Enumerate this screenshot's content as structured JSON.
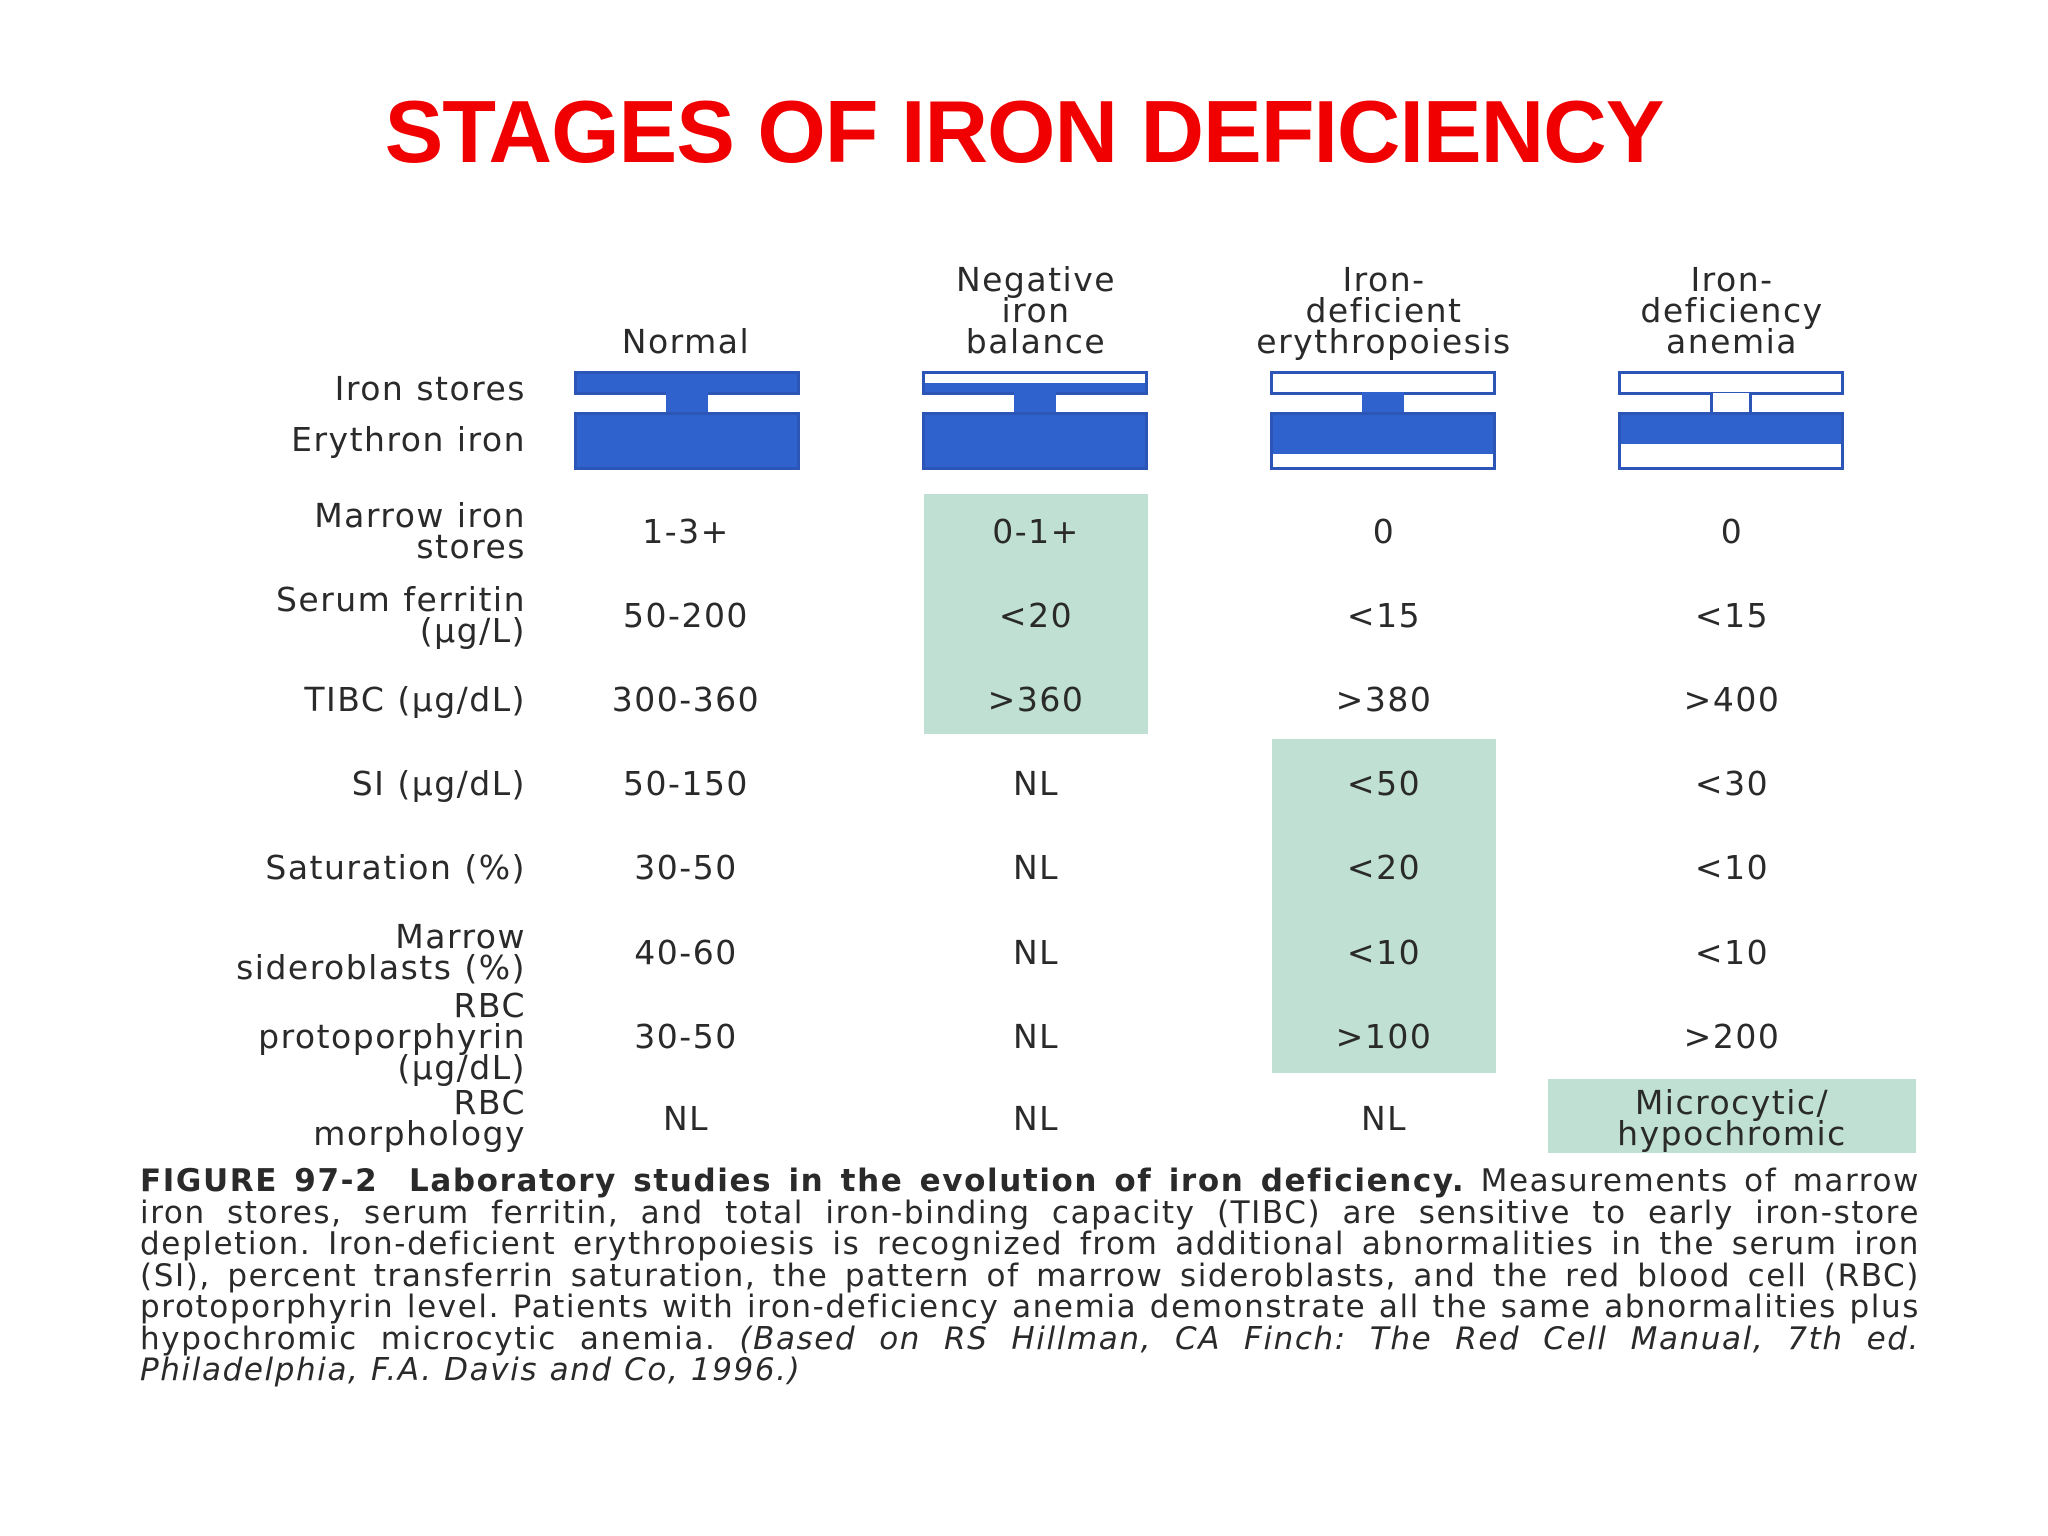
{
  "slide": {
    "title": "STAGES OF IRON DEFICIENCY"
  },
  "columns": [
    {
      "label": "Normal"
    },
    {
      "label": "Negative\niron\nbalance"
    },
    {
      "label": "Iron-\ndeficient\nerythropoiesis"
    },
    {
      "label": "Iron-\ndeficiency\nanemia"
    }
  ],
  "diagram": {
    "row_labels": [
      "Iron stores",
      "Erythron iron"
    ],
    "iron_stores_fill": [
      1.0,
      0.5,
      0.0,
      0.0
    ],
    "erythron_fill": [
      1.0,
      1.0,
      0.75,
      0.55
    ],
    "bar_color": "#2f62cc"
  },
  "rows": [
    {
      "label": "Marrow iron\nstores",
      "values": [
        "1-3+",
        "0-1+",
        "0",
        "0"
      ]
    },
    {
      "label": "Serum ferritin\n(µg/L)",
      "values": [
        "50-200",
        "<20",
        "<15",
        "<15"
      ]
    },
    {
      "label": "TIBC (µg/dL)",
      "values": [
        "300-360",
        ">360",
        ">380",
        ">400"
      ]
    },
    {
      "label": "SI (µg/dL)",
      "values": [
        "50-150",
        "NL",
        "<50",
        "<30"
      ]
    },
    {
      "label": "Saturation (%)",
      "values": [
        "30-50",
        "NL",
        "<20",
        "<10"
      ]
    },
    {
      "label": "Marrow\nsideroblasts (%)",
      "values": [
        "40-60",
        "NL",
        "<10",
        "<10"
      ]
    },
    {
      "label": "RBC\nprotoporphyrin\n(µg/dL)",
      "values": [
        "30-50",
        "NL",
        ">100",
        ">200"
      ]
    },
    {
      "label": "RBC\nmorphology",
      "values": [
        "NL",
        "NL",
        "NL",
        "Microcytic/\nhypochromic"
      ]
    }
  ],
  "highlight_color": "#bfe0d3",
  "caption": {
    "figure_label": "FIGURE 97-2",
    "heading": "Laboratory studies in the evolution of iron deficiency.",
    "body": "Measurements of marrow iron stores, serum ferritin, and total iron-binding capacity (TIBC) are sensitive to early iron-store depletion. Iron-deficient erythropoiesis is recognized from additional abnormalities in the serum iron (SI), percent transferrin saturation, the pattern of marrow sideroblasts, and the red blood cell (RBC) protoporphyrin level. Patients with iron-deficiency anemia demonstrate all the same abnormalities plus hypochromic microcytic anemia.",
    "citation": "(Based on RS Hillman, CA Finch: The Red Cell Manual, 7th ed. Philadelphia, F.A. Davis and Co, 1996.)"
  }
}
